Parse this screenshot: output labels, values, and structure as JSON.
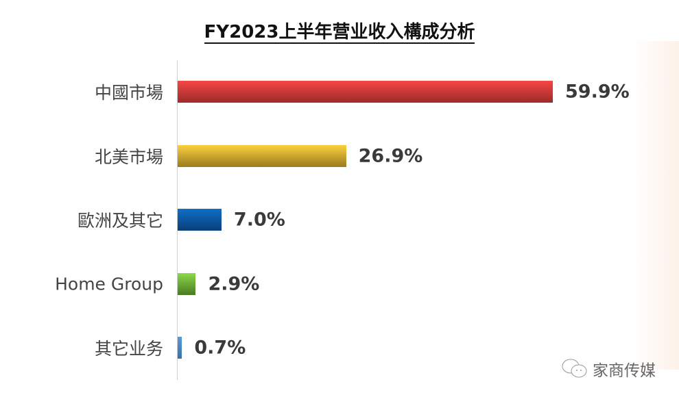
{
  "chart_data": {
    "type": "bar",
    "orientation": "horizontal",
    "title": "FY2023上半年营业收入構成分析",
    "categories": [
      "中國市場",
      "北美市場",
      "歐洲及其它",
      "Home Group",
      "其它业务"
    ],
    "values": [
      59.9,
      26.9,
      7.0,
      2.9,
      0.7
    ],
    "labels": [
      "59.9%",
      "26.9%",
      "7.0%",
      "2.9%",
      "0.7%"
    ],
    "colors": [
      [
        "#f84545",
        "#9a2b2b"
      ],
      [
        "#fbd140",
        "#9a7a1e"
      ],
      [
        "#0f6fc6",
        "#0a3f7a"
      ],
      [
        "#8cd84a",
        "#4a7a22"
      ],
      [
        "#5b9bd5",
        "#3a6fa5"
      ]
    ],
    "xlim": [
      0,
      60
    ],
    "grid": false,
    "legend": "none"
  },
  "watermark": {
    "text": "家商传媒",
    "icon": "wechat-icon"
  }
}
